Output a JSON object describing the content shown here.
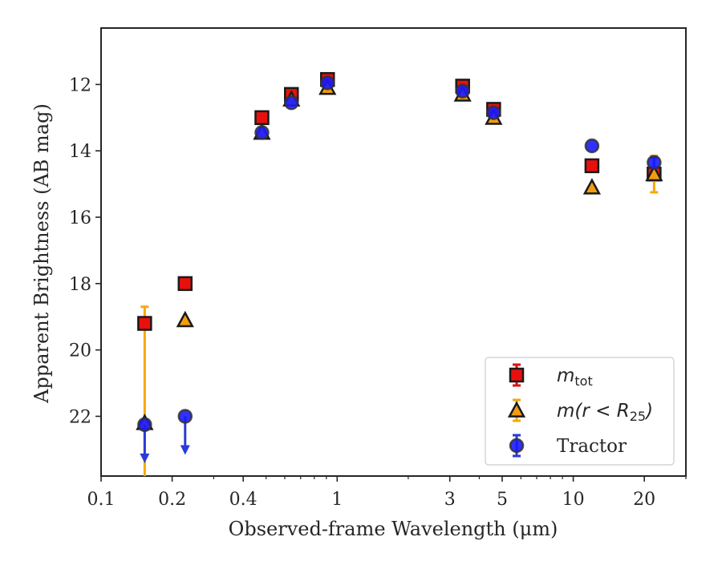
{
  "chart_data": {
    "type": "scatter",
    "title": "",
    "xlabel": "Observed-frame Wavelength (μm)",
    "ylabel": "Apparent Brightness (AB mag)",
    "xscale": "log",
    "xlim": [
      0.1,
      30
    ],
    "ylim": [
      23.8,
      10.3
    ],
    "y_inverted": true,
    "x_ticks": [
      {
        "value": 0.1,
        "label": "0.1"
      },
      {
        "value": 0.2,
        "label": "0.2"
      },
      {
        "value": 0.4,
        "label": "0.4"
      },
      {
        "value": 1,
        "label": "1"
      },
      {
        "value": 3,
        "label": "3"
      },
      {
        "value": 5,
        "label": "5"
      },
      {
        "value": 10,
        "label": "10"
      },
      {
        "value": 20,
        "label": "20"
      }
    ],
    "x_minor_ticks": [
      0.3,
      0.5,
      0.6,
      0.7,
      0.8,
      0.9,
      2,
      4,
      6,
      7,
      8,
      9,
      30
    ],
    "y_ticks": [
      {
        "value": 12,
        "label": "12"
      },
      {
        "value": 14,
        "label": "14"
      },
      {
        "value": 16,
        "label": "16"
      },
      {
        "value": 18,
        "label": "18"
      },
      {
        "value": 20,
        "label": "20"
      },
      {
        "value": 22,
        "label": "22"
      }
    ],
    "legend_position": "lower-right",
    "grid": false,
    "series": [
      {
        "name": "m_tot",
        "legend_main": "m",
        "legend_sub": "tot",
        "marker": "square",
        "color": "#e8100d",
        "errcolor": "#dd1111",
        "points": [
          {
            "x": 0.153,
            "y": 19.2,
            "err": 0.5
          },
          {
            "x": 0.227,
            "y": 18.0,
            "err": 0.0
          },
          {
            "x": 0.48,
            "y": 13.0,
            "err": 0.0
          },
          {
            "x": 0.64,
            "y": 12.3,
            "err": 0.0
          },
          {
            "x": 0.91,
            "y": 11.85,
            "err": 0.0
          },
          {
            "x": 3.4,
            "y": 12.05,
            "err": 0.1
          },
          {
            "x": 4.6,
            "y": 12.75,
            "err": 0.05
          },
          {
            "x": 12.0,
            "y": 14.45,
            "err": 0.0
          },
          {
            "x": 22.0,
            "y": 14.7,
            "err": 0.0
          }
        ]
      },
      {
        "name": "m(r < R25)",
        "legend_main": "m(r < R",
        "legend_sub": "25",
        "legend_tail": ")",
        "marker": "triangle",
        "color": "#f39c12",
        "errcolor": "#f5a80a",
        "points": [
          {
            "x": 0.153,
            "y": 22.2,
            "err": 0.0
          },
          {
            "x": 0.227,
            "y": 19.1,
            "err": 0.0
          },
          {
            "x": 0.48,
            "y": 13.45,
            "err": 0.0
          },
          {
            "x": 0.64,
            "y": 12.45,
            "err": 0.0
          },
          {
            "x": 0.91,
            "y": 12.1,
            "err": 0.0
          },
          {
            "x": 3.4,
            "y": 12.3,
            "err": 0.0
          },
          {
            "x": 4.6,
            "y": 13.0,
            "err": 0.0
          },
          {
            "x": 12.0,
            "y": 15.1,
            "err": 0.0
          },
          {
            "x": 22.0,
            "y": 14.7,
            "err": 0.55
          }
        ]
      },
      {
        "name": "Tractor",
        "legend_main": "Tractor",
        "marker": "circle",
        "color": "#1a1aff",
        "errcolor": "#2a3bd6",
        "points": [
          {
            "x": 0.153,
            "y": 22.25,
            "err": 0.0,
            "upper_limit": true
          },
          {
            "x": 0.227,
            "y": 22.0,
            "err": 0.0,
            "upper_limit": true
          },
          {
            "x": 0.48,
            "y": 13.45,
            "err": 0.0
          },
          {
            "x": 0.64,
            "y": 12.55,
            "err": 0.0
          },
          {
            "x": 0.91,
            "y": 11.95,
            "err": 0.0
          },
          {
            "x": 3.4,
            "y": 12.2,
            "err": 0.0
          },
          {
            "x": 4.6,
            "y": 12.85,
            "err": 0.0
          },
          {
            "x": 12.0,
            "y": 13.85,
            "err": 0.0
          },
          {
            "x": 22.0,
            "y": 14.35,
            "err": 0.15
          }
        ]
      }
    ]
  }
}
